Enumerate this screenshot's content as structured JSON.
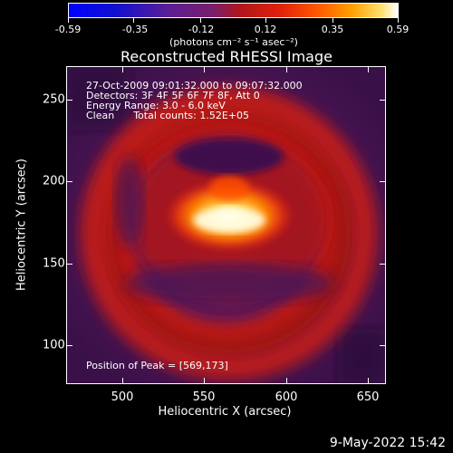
{
  "colorbar": {
    "ticks": [
      "-0.59",
      "-0.35",
      "-0.12",
      "0.12",
      "0.35",
      "0.59"
    ],
    "units": "(photons cm⁻² s⁻¹ asec⁻²)"
  },
  "title": "Reconstructed RHESSI Image",
  "info": {
    "line1": "27-Oct-2009 09:01:32.000 to 09:07:32.000",
    "line2": "Detectors: 3F 4F 5F 6F 7F 8F, Att 0",
    "line3": "Energy Range: 3.0 - 6.0 keV",
    "line4": "Clean      Total counts: 1.52E+05",
    "peak": "Position of Peak = [569,173]"
  },
  "axes": {
    "x_title": "Heliocentric X (arcsec)",
    "y_title": "Heliocentric Y (arcsec)",
    "x_ticks": [
      "500",
      "550",
      "600",
      "650"
    ],
    "y_ticks": [
      "250",
      "200",
      "150",
      "100"
    ]
  },
  "timestamp": "9-May-2022 15:42"
}
